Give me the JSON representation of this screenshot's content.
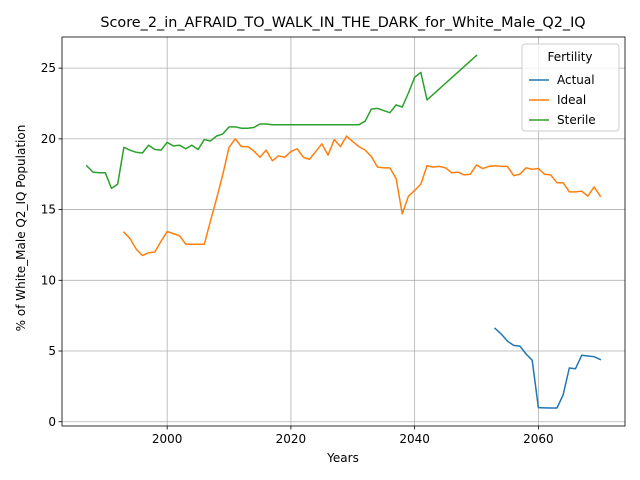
{
  "chart_data": {
    "type": "line",
    "title": "Score_2_in_AFRAID_TO_WALK_IN_THE_DARK_for_White_Male_Q2_IQ",
    "xlabel": "Years",
    "ylabel": "% of White_Male Q2_IQ Population",
    "xlim": [
      1983,
      2074
    ],
    "ylim": [
      -0.3,
      27.2
    ],
    "xticks": [
      2000,
      2020,
      2040,
      2060
    ],
    "yticks": [
      0,
      5,
      10,
      15,
      20,
      25
    ],
    "grid": true,
    "legend": {
      "title": "Fertility",
      "position": "top-right"
    },
    "series": [
      {
        "name": "Actual",
        "color": "#1f77b4",
        "x": [
          2053,
          2054,
          2055,
          2056,
          2057,
          2058,
          2059,
          2060,
          2061,
          2062,
          2063,
          2064,
          2065,
          2066,
          2067,
          2068,
          2069,
          2070
        ],
        "y": [
          6.6,
          6.2,
          5.7,
          5.4,
          5.35,
          4.8,
          4.35,
          1.0,
          0.98,
          0.97,
          0.97,
          1.9,
          3.8,
          3.75,
          4.7,
          4.65,
          4.6,
          4.4
        ]
      },
      {
        "name": "Ideal",
        "color": "#ff7f0e",
        "x": [
          1993,
          1994,
          1995,
          1996,
          1997,
          1998,
          1999,
          2000,
          2001,
          2002,
          2003,
          2004,
          2005,
          2006,
          2007,
          2008,
          2009,
          2010,
          2011,
          2012,
          2013,
          2014,
          2015,
          2016,
          2017,
          2018,
          2019,
          2020,
          2021,
          2022,
          2023,
          2024,
          2025,
          2026,
          2027,
          2028,
          2029,
          2030,
          2031,
          2032,
          2033,
          2034,
          2035,
          2036,
          2037,
          2038,
          2039,
          2040,
          2041,
          2042,
          2043,
          2044,
          2045,
          2046,
          2047,
          2048,
          2049,
          2050,
          2051,
          2052,
          2053,
          2054,
          2055,
          2056,
          2057,
          2058,
          2059,
          2060,
          2061,
          2062,
          2063,
          2064,
          2065,
          2066,
          2067,
          2068,
          2069,
          2070
        ],
        "y": [
          13.4,
          12.95,
          12.2,
          11.75,
          11.95,
          12.0,
          12.75,
          13.45,
          13.3,
          13.15,
          12.55,
          12.55,
          12.55,
          12.55,
          14.2,
          15.8,
          17.5,
          19.4,
          20.0,
          19.45,
          19.45,
          19.15,
          18.7,
          19.2,
          18.45,
          18.8,
          18.7,
          19.1,
          19.3,
          18.7,
          18.55,
          19.1,
          19.65,
          18.85,
          19.95,
          19.45,
          20.2,
          19.8,
          19.45,
          19.2,
          18.75,
          18.0,
          17.95,
          17.95,
          17.2,
          14.7,
          15.95,
          16.35,
          16.8,
          18.1,
          18.0,
          18.05,
          17.95,
          17.6,
          17.65,
          17.45,
          17.5,
          18.15,
          17.9,
          18.05,
          18.1,
          18.05,
          18.05,
          17.4,
          17.5,
          17.95,
          17.85,
          17.9,
          17.5,
          17.45,
          16.9,
          16.9,
          16.25,
          16.25,
          16.3,
          15.95,
          16.6,
          15.95
        ]
      },
      {
        "name": "Sterile",
        "color": "#2ca02c",
        "x": [
          1987,
          1988,
          1989,
          1990,
          1991,
          1992,
          1993,
          1994,
          1995,
          1996,
          1997,
          1998,
          1999,
          2000,
          2001,
          2002,
          2003,
          2004,
          2005,
          2006,
          2007,
          2008,
          2009,
          2010,
          2011,
          2012,
          2013,
          2014,
          2015,
          2016,
          2017,
          2018,
          2019,
          2020,
          2025,
          2030,
          2031,
          2032,
          2033,
          2034,
          2035,
          2036,
          2037,
          2038,
          2039,
          2040,
          2041,
          2042,
          2050
        ],
        "y": [
          18.1,
          17.65,
          17.6,
          17.6,
          16.5,
          16.8,
          19.4,
          19.2,
          19.05,
          19.0,
          19.55,
          19.25,
          19.2,
          19.75,
          19.5,
          19.55,
          19.3,
          19.55,
          19.25,
          19.95,
          19.85,
          20.2,
          20.35,
          20.85,
          20.85,
          20.75,
          20.75,
          20.8,
          21.05,
          21.05,
          21.0,
          21.0,
          21.0,
          21.0,
          21.0,
          21.0,
          21.0,
          21.25,
          22.1,
          22.15,
          22.0,
          21.85,
          22.4,
          22.25,
          23.25,
          24.35,
          24.7,
          22.75,
          25.9
        ]
      }
    ]
  }
}
